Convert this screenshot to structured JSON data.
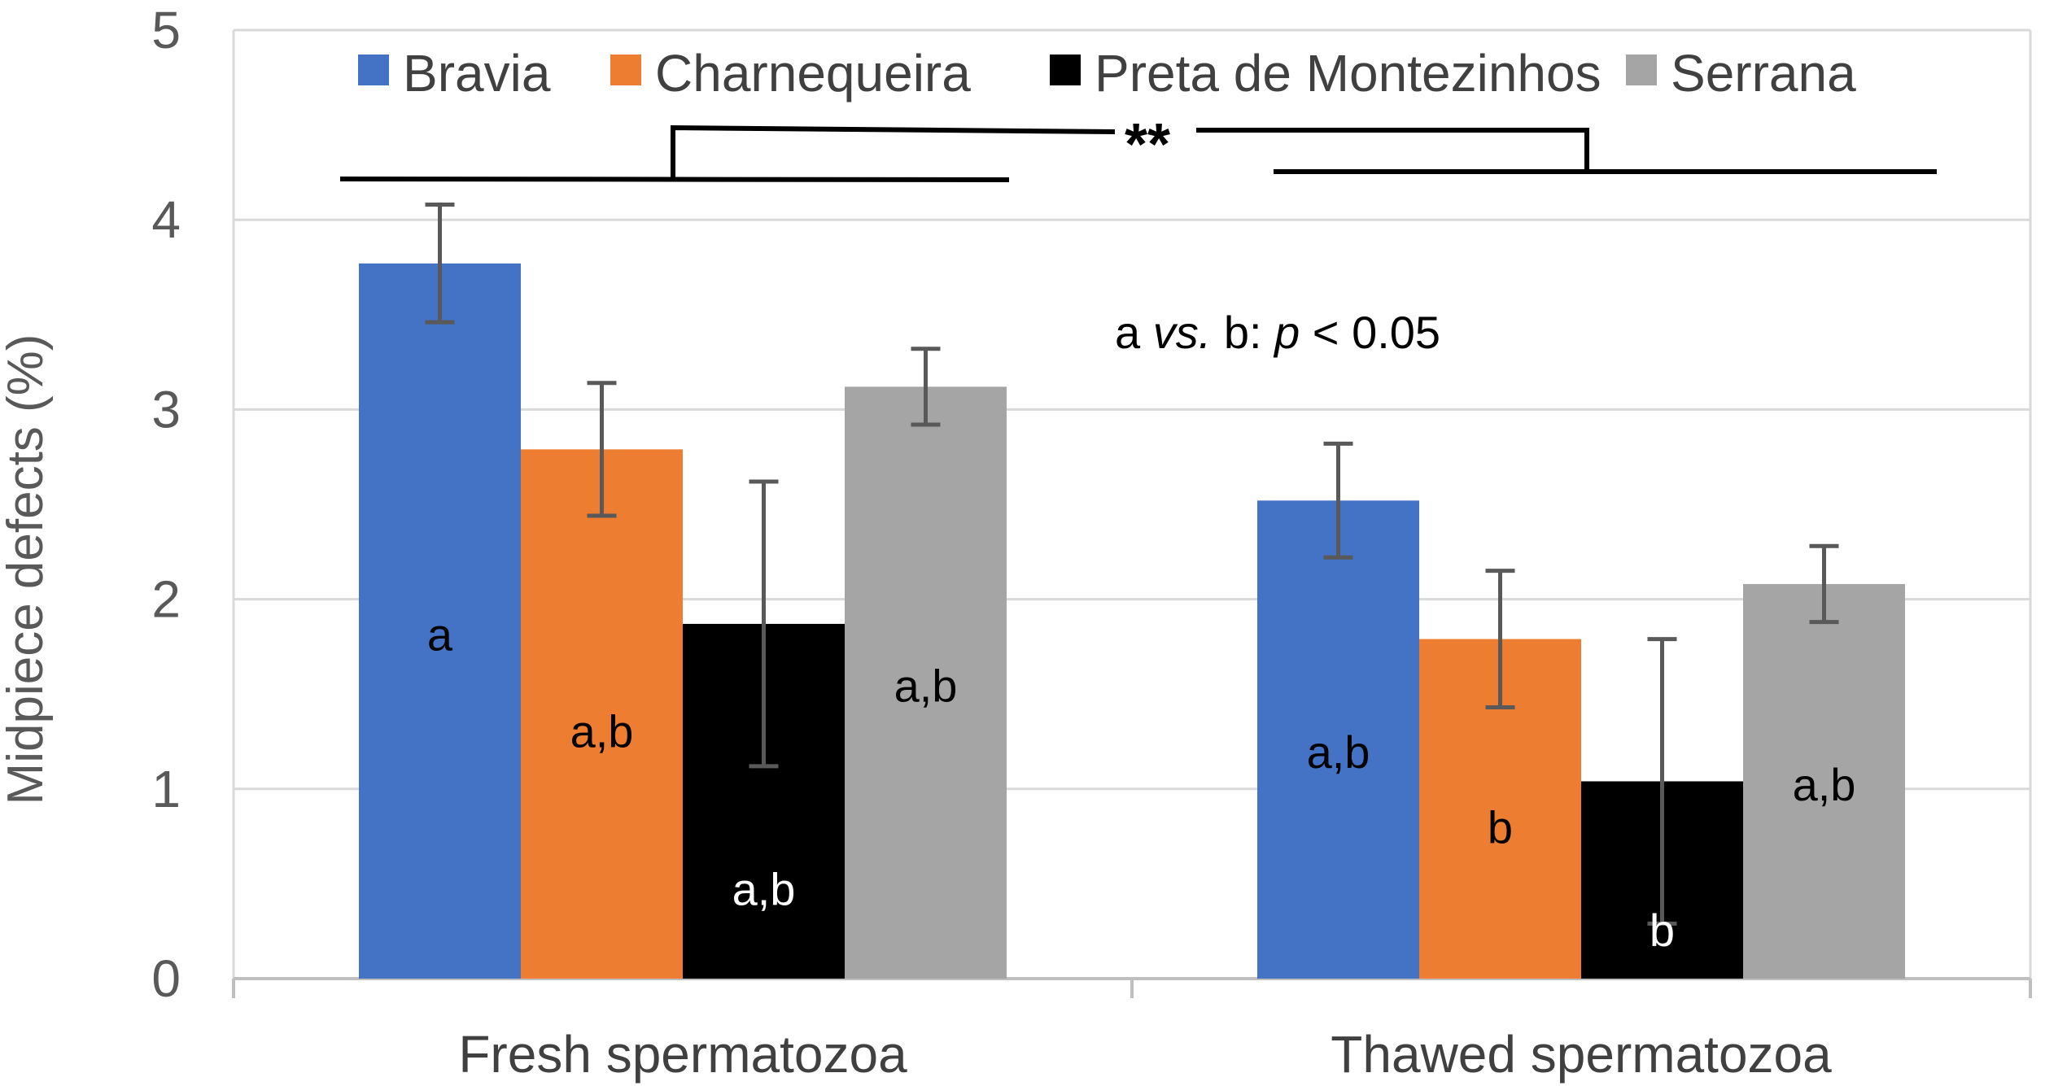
{
  "chart_data": {
    "type": "bar",
    "title": "",
    "xlabel": "",
    "ylabel": "Midpiece defects (%)",
    "ylim": [
      0,
      5
    ],
    "yticks": [
      "0",
      "1",
      "2",
      "3",
      "4",
      "5"
    ],
    "grid": true,
    "legend_position": "top",
    "categories": [
      "Fresh spermatozoa",
      "Thawed spermatozoa"
    ],
    "series": [
      {
        "name": "Bravia",
        "color": "#4472C4",
        "label_color": "#000000",
        "values": [
          3.77,
          2.52
        ],
        "errors": [
          0.31,
          0.3
        ],
        "labels": [
          "a",
          "a,b"
        ]
      },
      {
        "name": "Charnequeira",
        "color": "#ED7D31",
        "label_color": "#000000",
        "values": [
          2.79,
          1.79
        ],
        "errors": [
          0.35,
          0.36
        ],
        "labels": [
          "a,b",
          "b"
        ]
      },
      {
        "name": "Preta de Montezinhos",
        "color": "#000000",
        "label_color": "#ffffff",
        "values": [
          1.87,
          1.04
        ],
        "errors": [
          0.75,
          0.75
        ],
        "labels": [
          "a,b",
          "b"
        ]
      },
      {
        "name": "Serrana",
        "color": "#A5A5A5",
        "label_color": "#000000",
        "values": [
          3.12,
          2.08
        ],
        "errors": [
          0.2,
          0.2
        ],
        "labels": [
          "a,b",
          "a,b"
        ]
      }
    ],
    "annotations": {
      "significance_text": "a vs. b: p < 0.05",
      "significance_parts": [
        "a ",
        "vs.",
        " b: ",
        "p",
        " < 0.05"
      ],
      "bracket_label": "**"
    }
  }
}
